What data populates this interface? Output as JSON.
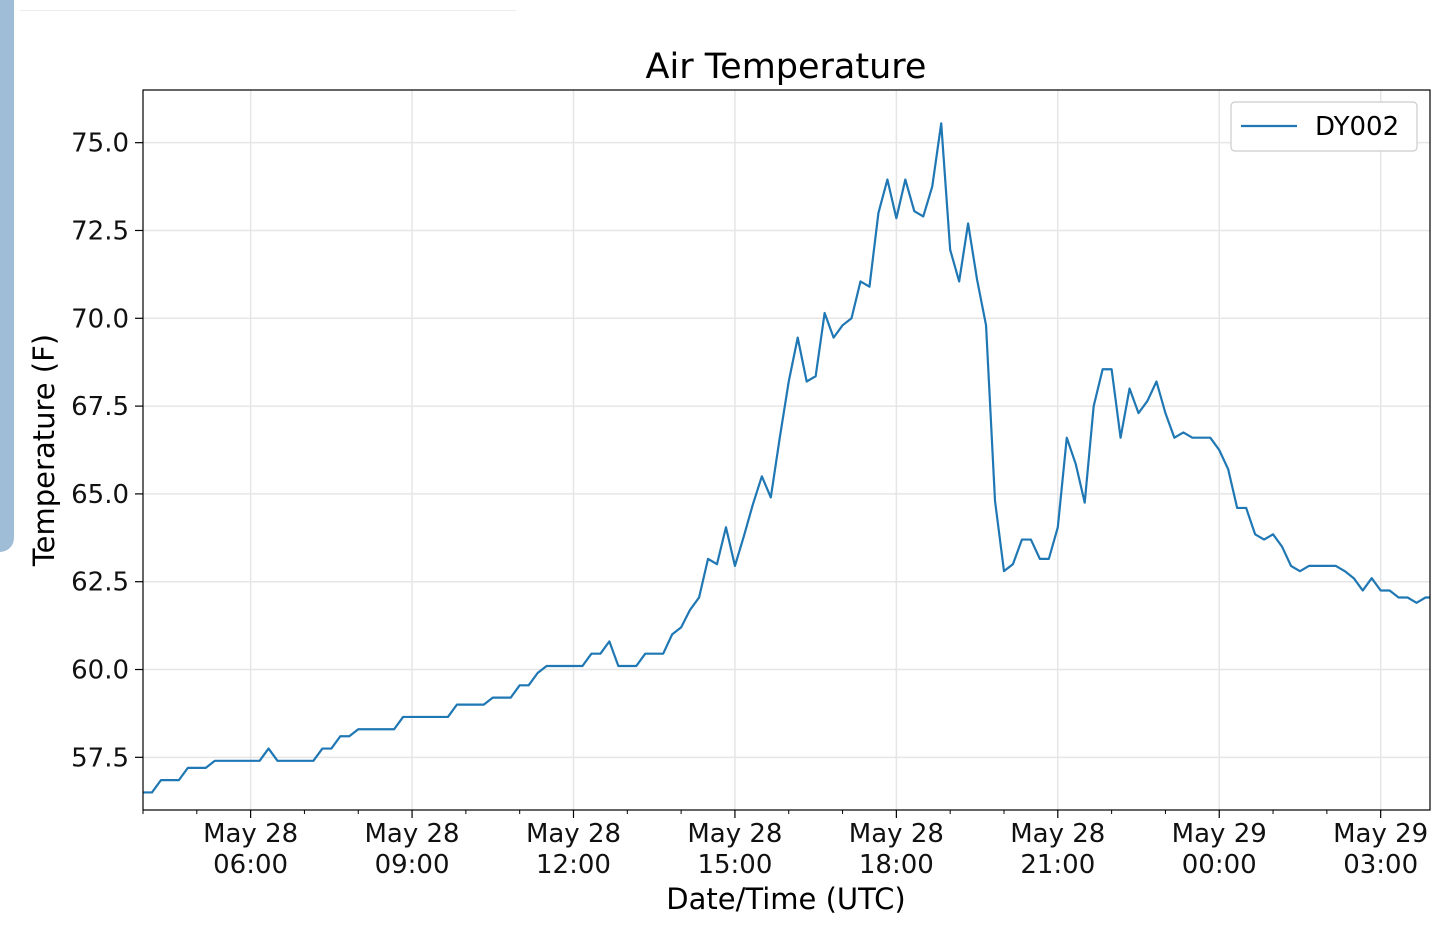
{
  "chart_data": {
    "type": "line",
    "title": "Air Temperature",
    "xlabel": "Date/Time (UTC)",
    "ylabel": "Temperature (F)",
    "xlim": [
      "2019-05-28T04:00",
      "2019-05-29T03:55"
    ],
    "ylim": [
      56.0,
      76.5
    ],
    "grid": true,
    "legend_position": "top-right",
    "colors": {
      "series": "#1f77b4",
      "grid": "#e6e6e6",
      "axis": "#000000"
    },
    "x_ticks": [
      {
        "time": "2019-05-28T06:00",
        "line1": "May 28",
        "line2": "06:00"
      },
      {
        "time": "2019-05-28T09:00",
        "line1": "May 28",
        "line2": "09:00"
      },
      {
        "time": "2019-05-28T12:00",
        "line1": "May 28",
        "line2": "12:00"
      },
      {
        "time": "2019-05-28T15:00",
        "line1": "May 28",
        "line2": "15:00"
      },
      {
        "time": "2019-05-28T18:00",
        "line1": "May 28",
        "line2": "18:00"
      },
      {
        "time": "2019-05-28T21:00",
        "line1": "May 28",
        "line2": "21:00"
      },
      {
        "time": "2019-05-29T00:00",
        "line1": "May 29",
        "line2": "00:00"
      },
      {
        "time": "2019-05-29T03:00",
        "line1": "May 29",
        "line2": "03:00"
      }
    ],
    "y_ticks": [
      {
        "value": 57.5,
        "label": "57.5"
      },
      {
        "value": 60.0,
        "label": "60.0"
      },
      {
        "value": 62.5,
        "label": "62.5"
      },
      {
        "value": 65.0,
        "label": "65.0"
      },
      {
        "value": 67.5,
        "label": "67.5"
      },
      {
        "value": 70.0,
        "label": "70.0"
      },
      {
        "value": 72.5,
        "label": "72.5"
      },
      {
        "value": 75.0,
        "label": "75.0"
      }
    ],
    "series": [
      {
        "name": "DY002",
        "points": [
          [
            "2019-05-28T04:00",
            56.5
          ],
          [
            "2019-05-28T04:10",
            56.5
          ],
          [
            "2019-05-28T04:20",
            56.85
          ],
          [
            "2019-05-28T04:30",
            56.85
          ],
          [
            "2019-05-28T04:40",
            56.85
          ],
          [
            "2019-05-28T04:50",
            57.2
          ],
          [
            "2019-05-28T05:00",
            57.2
          ],
          [
            "2019-05-28T05:10",
            57.2
          ],
          [
            "2019-05-28T05:20",
            57.4
          ],
          [
            "2019-05-28T05:30",
            57.4
          ],
          [
            "2019-05-28T05:40",
            57.4
          ],
          [
            "2019-05-28T05:50",
            57.4
          ],
          [
            "2019-05-28T06:00",
            57.4
          ],
          [
            "2019-05-28T06:10",
            57.4
          ],
          [
            "2019-05-28T06:20",
            57.75
          ],
          [
            "2019-05-28T06:30",
            57.4
          ],
          [
            "2019-05-28T06:40",
            57.4
          ],
          [
            "2019-05-28T06:50",
            57.4
          ],
          [
            "2019-05-28T07:00",
            57.4
          ],
          [
            "2019-05-28T07:10",
            57.4
          ],
          [
            "2019-05-28T07:20",
            57.75
          ],
          [
            "2019-05-28T07:30",
            57.75
          ],
          [
            "2019-05-28T07:40",
            58.1
          ],
          [
            "2019-05-28T07:50",
            58.1
          ],
          [
            "2019-05-28T08:00",
            58.3
          ],
          [
            "2019-05-28T08:10",
            58.3
          ],
          [
            "2019-05-28T08:20",
            58.3
          ],
          [
            "2019-05-28T08:30",
            58.3
          ],
          [
            "2019-05-28T08:40",
            58.3
          ],
          [
            "2019-05-28T08:50",
            58.65
          ],
          [
            "2019-05-28T09:00",
            58.65
          ],
          [
            "2019-05-28T09:10",
            58.65
          ],
          [
            "2019-05-28T09:20",
            58.65
          ],
          [
            "2019-05-28T09:30",
            58.65
          ],
          [
            "2019-05-28T09:40",
            58.65
          ],
          [
            "2019-05-28T09:50",
            59.0
          ],
          [
            "2019-05-28T10:00",
            59.0
          ],
          [
            "2019-05-28T10:10",
            59.0
          ],
          [
            "2019-05-28T10:20",
            59.0
          ],
          [
            "2019-05-28T10:30",
            59.2
          ],
          [
            "2019-05-28T10:40",
            59.2
          ],
          [
            "2019-05-28T10:50",
            59.2
          ],
          [
            "2019-05-28T11:00",
            59.55
          ],
          [
            "2019-05-28T11:10",
            59.55
          ],
          [
            "2019-05-28T11:20",
            59.9
          ],
          [
            "2019-05-28T11:30",
            60.1
          ],
          [
            "2019-05-28T11:40",
            60.1
          ],
          [
            "2019-05-28T11:50",
            60.1
          ],
          [
            "2019-05-28T12:00",
            60.1
          ],
          [
            "2019-05-28T12:10",
            60.1
          ],
          [
            "2019-05-28T12:20",
            60.45
          ],
          [
            "2019-05-28T12:30",
            60.45
          ],
          [
            "2019-05-28T12:40",
            60.8
          ],
          [
            "2019-05-28T12:50",
            60.1
          ],
          [
            "2019-05-28T13:00",
            60.1
          ],
          [
            "2019-05-28T13:10",
            60.1
          ],
          [
            "2019-05-28T13:20",
            60.45
          ],
          [
            "2019-05-28T13:30",
            60.45
          ],
          [
            "2019-05-28T13:40",
            60.45
          ],
          [
            "2019-05-28T13:50",
            61.0
          ],
          [
            "2019-05-28T14:00",
            61.2
          ],
          [
            "2019-05-28T14:10",
            61.7
          ],
          [
            "2019-05-28T14:20",
            62.05
          ],
          [
            "2019-05-28T14:30",
            63.15
          ],
          [
            "2019-05-28T14:40",
            63.0
          ],
          [
            "2019-05-28T14:50",
            64.05
          ],
          [
            "2019-05-28T15:00",
            62.95
          ],
          [
            "2019-05-28T15:10",
            63.8
          ],
          [
            "2019-05-28T15:20",
            64.7
          ],
          [
            "2019-05-28T15:30",
            65.5
          ],
          [
            "2019-05-28T15:40",
            64.9
          ],
          [
            "2019-05-28T15:50",
            66.6
          ],
          [
            "2019-05-28T16:00",
            68.2
          ],
          [
            "2019-05-28T16:10",
            69.45
          ],
          [
            "2019-05-28T16:20",
            68.2
          ],
          [
            "2019-05-28T16:30",
            68.35
          ],
          [
            "2019-05-28T16:40",
            70.15
          ],
          [
            "2019-05-28T16:50",
            69.45
          ],
          [
            "2019-05-28T17:00",
            69.8
          ],
          [
            "2019-05-28T17:10",
            70.0
          ],
          [
            "2019-05-28T17:20",
            71.05
          ],
          [
            "2019-05-28T17:30",
            70.9
          ],
          [
            "2019-05-28T17:40",
            73.0
          ],
          [
            "2019-05-28T17:50",
            73.95
          ],
          [
            "2019-05-28T18:00",
            72.85
          ],
          [
            "2019-05-28T18:10",
            73.95
          ],
          [
            "2019-05-28T18:20",
            73.05
          ],
          [
            "2019-05-28T18:30",
            72.9
          ],
          [
            "2019-05-28T18:40",
            73.75
          ],
          [
            "2019-05-28T18:50",
            75.55
          ],
          [
            "2019-05-28T19:00",
            71.95
          ],
          [
            "2019-05-28T19:10",
            71.05
          ],
          [
            "2019-05-28T19:20",
            72.7
          ],
          [
            "2019-05-28T19:30",
            71.1
          ],
          [
            "2019-05-28T19:40",
            69.8
          ],
          [
            "2019-05-28T19:50",
            64.8
          ],
          [
            "2019-05-28T20:00",
            62.8
          ],
          [
            "2019-05-28T20:10",
            63.0
          ],
          [
            "2019-05-28T20:20",
            63.7
          ],
          [
            "2019-05-28T20:30",
            63.7
          ],
          [
            "2019-05-28T20:40",
            63.15
          ],
          [
            "2019-05-28T20:50",
            63.15
          ],
          [
            "2019-05-28T21:00",
            64.05
          ],
          [
            "2019-05-28T21:10",
            66.6
          ],
          [
            "2019-05-28T21:20",
            65.85
          ],
          [
            "2019-05-28T21:30",
            64.75
          ],
          [
            "2019-05-28T21:40",
            67.5
          ],
          [
            "2019-05-28T21:50",
            68.55
          ],
          [
            "2019-05-28T22:00",
            68.55
          ],
          [
            "2019-05-28T22:10",
            66.6
          ],
          [
            "2019-05-28T22:20",
            68.0
          ],
          [
            "2019-05-28T22:30",
            67.3
          ],
          [
            "2019-05-28T22:40",
            67.65
          ],
          [
            "2019-05-28T22:50",
            68.2
          ],
          [
            "2019-05-28T23:00",
            67.3
          ],
          [
            "2019-05-28T23:10",
            66.6
          ],
          [
            "2019-05-28T23:20",
            66.75
          ],
          [
            "2019-05-28T23:30",
            66.6
          ],
          [
            "2019-05-28T23:40",
            66.6
          ],
          [
            "2019-05-28T23:50",
            66.6
          ],
          [
            "2019-05-29T00:00",
            66.25
          ],
          [
            "2019-05-29T00:10",
            65.7
          ],
          [
            "2019-05-29T00:20",
            64.6
          ],
          [
            "2019-05-29T00:30",
            64.6
          ],
          [
            "2019-05-29T00:40",
            63.85
          ],
          [
            "2019-05-29T00:50",
            63.7
          ],
          [
            "2019-05-29T01:00",
            63.85
          ],
          [
            "2019-05-29T01:10",
            63.5
          ],
          [
            "2019-05-29T01:20",
            62.95
          ],
          [
            "2019-05-29T01:30",
            62.8
          ],
          [
            "2019-05-29T01:40",
            62.95
          ],
          [
            "2019-05-29T01:50",
            62.95
          ],
          [
            "2019-05-29T02:00",
            62.95
          ],
          [
            "2019-05-29T02:10",
            62.95
          ],
          [
            "2019-05-29T02:20",
            62.8
          ],
          [
            "2019-05-29T02:30",
            62.6
          ],
          [
            "2019-05-29T02:40",
            62.25
          ],
          [
            "2019-05-29T02:50",
            62.6
          ],
          [
            "2019-05-29T03:00",
            62.25
          ],
          [
            "2019-05-29T03:10",
            62.25
          ],
          [
            "2019-05-29T03:20",
            62.05
          ],
          [
            "2019-05-29T03:30",
            62.05
          ],
          [
            "2019-05-29T03:40",
            61.9
          ],
          [
            "2019-05-29T03:50",
            62.05
          ],
          [
            "2019-05-29T03:55",
            62.05
          ]
        ]
      }
    ]
  }
}
